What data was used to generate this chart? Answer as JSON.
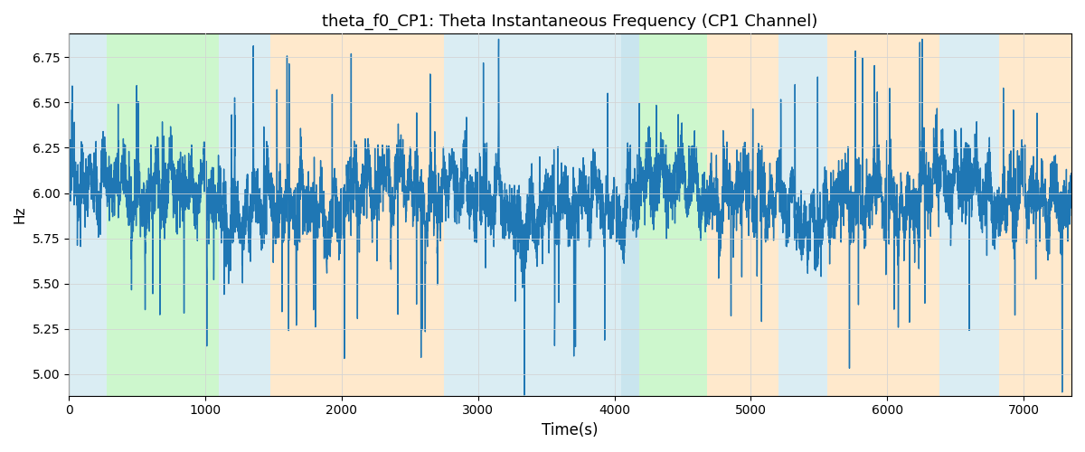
{
  "title": "theta_f0_CP1: Theta Instantaneous Frequency (CP1 Channel)",
  "xlabel": "Time(s)",
  "ylabel": "Hz",
  "xlim": [
    0,
    7350
  ],
  "ylim": [
    4.88,
    6.88
  ],
  "figsize": [
    12,
    5
  ],
  "dpi": 100,
  "line_color": "#1f77b4",
  "line_width": 1.0,
  "bg_regions": [
    {
      "xmin": 0,
      "xmax": 280,
      "color": "#add8e6",
      "alpha": 0.45
    },
    {
      "xmin": 280,
      "xmax": 1100,
      "color": "#90ee90",
      "alpha": 0.45
    },
    {
      "xmin": 1100,
      "xmax": 1480,
      "color": "#add8e6",
      "alpha": 0.45
    },
    {
      "xmin": 1480,
      "xmax": 2100,
      "color": "#ffd59a",
      "alpha": 0.5
    },
    {
      "xmin": 2100,
      "xmax": 2750,
      "color": "#ffd59a",
      "alpha": 0.5
    },
    {
      "xmin": 2750,
      "xmax": 3300,
      "color": "#add8e6",
      "alpha": 0.45
    },
    {
      "xmin": 3300,
      "xmax": 4050,
      "color": "#add8e6",
      "alpha": 0.45
    },
    {
      "xmin": 4050,
      "xmax": 4180,
      "color": "#add8e6",
      "alpha": 0.65
    },
    {
      "xmin": 4180,
      "xmax": 4680,
      "color": "#90ee90",
      "alpha": 0.45
    },
    {
      "xmin": 4680,
      "xmax": 5200,
      "color": "#ffd59a",
      "alpha": 0.5
    },
    {
      "xmin": 5200,
      "xmax": 5560,
      "color": "#add8e6",
      "alpha": 0.45
    },
    {
      "xmin": 5560,
      "xmax": 6380,
      "color": "#ffd59a",
      "alpha": 0.5
    },
    {
      "xmin": 6380,
      "xmax": 6820,
      "color": "#add8e6",
      "alpha": 0.45
    },
    {
      "xmin": 6820,
      "xmax": 7350,
      "color": "#ffd59a",
      "alpha": 0.5
    }
  ],
  "seed": 17,
  "n_points": 7350,
  "yticks": [
    5.0,
    5.25,
    5.5,
    5.75,
    6.0,
    6.25,
    6.5,
    6.75
  ],
  "xticks": [
    0,
    1000,
    2000,
    3000,
    4000,
    5000,
    6000,
    7000
  ]
}
